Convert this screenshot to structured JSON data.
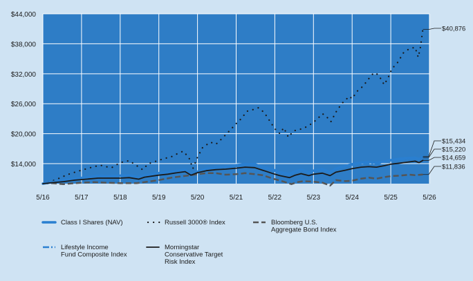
{
  "chart_data": {
    "type": "line",
    "title": "",
    "xlabel": "",
    "ylabel": "",
    "x_ticks": [
      "5/16",
      "5/17",
      "5/18",
      "5/19",
      "5/20",
      "5/21",
      "5/22",
      "5/23",
      "5/24",
      "5/25",
      "5/26"
    ],
    "y_ticks": [
      "$44,000",
      "$38,000",
      "$32,000",
      "$26,000",
      "$20,000",
      "$14,000"
    ],
    "ylim": [
      10000,
      44000
    ],
    "grid": true,
    "legend_position": "bottom",
    "end_labels": [
      {
        "text": "$40,876",
        "value": 40876
      },
      {
        "text": "$15,434",
        "value": 15434
      },
      {
        "text": "$15,220",
        "value": 15220
      },
      {
        "text": "$14,659",
        "value": 14659
      },
      {
        "text": "$11,836",
        "value": 11836
      }
    ],
    "colors": {
      "accent_blue": "#2a7fd0",
      "background": "#cfe3f3",
      "plot_bg": "#2e7dc6",
      "grid": "#ffffff",
      "dark": "#1a1a1a",
      "gray": "#555555"
    },
    "series": [
      {
        "name": "Class I Shares (NAV)",
        "style": "thick-blue",
        "points": [
          [
            2016.37,
            10000
          ],
          [
            2016.6,
            10300
          ],
          [
            2016.9,
            10700
          ],
          [
            2017.2,
            11000
          ],
          [
            2017.5,
            11300
          ],
          [
            2017.8,
            11600
          ],
          [
            2018.0,
            11500
          ],
          [
            2018.37,
            11600
          ],
          [
            2018.6,
            11700
          ],
          [
            2018.85,
            11300
          ],
          [
            2019.0,
            11700
          ],
          [
            2019.37,
            12100
          ],
          [
            2019.6,
            12300
          ],
          [
            2019.85,
            12600
          ],
          [
            2020.05,
            12800
          ],
          [
            2020.2,
            11900
          ],
          [
            2020.37,
            12400
          ],
          [
            2020.6,
            13000
          ],
          [
            2020.85,
            13300
          ],
          [
            2021.1,
            13400
          ],
          [
            2021.37,
            13700
          ],
          [
            2021.6,
            13900
          ],
          [
            2021.85,
            13900
          ],
          [
            2022.05,
            13400
          ],
          [
            2022.37,
            12700
          ],
          [
            2022.5,
            12300
          ],
          [
            2022.75,
            11900
          ],
          [
            2022.9,
            12500
          ],
          [
            2023.05,
            12800
          ],
          [
            2023.25,
            12300
          ],
          [
            2023.37,
            12600
          ],
          [
            2023.6,
            12900
          ],
          [
            2023.8,
            12300
          ],
          [
            2023.95,
            13000
          ],
          [
            2024.2,
            13600
          ],
          [
            2024.37,
            13900
          ],
          [
            2024.6,
            14200
          ],
          [
            2024.8,
            14300
          ],
          [
            2025.0,
            14200
          ],
          [
            2025.2,
            14400
          ],
          [
            2025.37,
            14700
          ],
          [
            2025.6,
            15000
          ],
          [
            2025.8,
            15100
          ],
          [
            2026.0,
            15200
          ],
          [
            2026.1,
            14900
          ],
          [
            2026.2,
            15434
          ]
        ]
      },
      {
        "name": "Russell 3000® Index",
        "style": "dotted-dark",
        "points": [
          [
            2016.37,
            10000
          ],
          [
            2016.6,
            10500
          ],
          [
            2016.8,
            11100
          ],
          [
            2017.0,
            11800
          ],
          [
            2017.2,
            12300
          ],
          [
            2017.37,
            12700
          ],
          [
            2017.6,
            13200
          ],
          [
            2017.85,
            13700
          ],
          [
            2018.0,
            13400
          ],
          [
            2018.15,
            13200
          ],
          [
            2018.37,
            14200
          ],
          [
            2018.6,
            14600
          ],
          [
            2018.8,
            13600
          ],
          [
            2018.95,
            12800
          ],
          [
            2019.1,
            14000
          ],
          [
            2019.3,
            14500
          ],
          [
            2019.5,
            15000
          ],
          [
            2019.7,
            15400
          ],
          [
            2019.85,
            16000
          ],
          [
            2020.0,
            16500
          ],
          [
            2020.15,
            15200
          ],
          [
            2020.25,
            13000
          ],
          [
            2020.37,
            15300
          ],
          [
            2020.5,
            17200
          ],
          [
            2020.7,
            18300
          ],
          [
            2020.85,
            17900
          ],
          [
            2021.0,
            19000
          ],
          [
            2021.15,
            20200
          ],
          [
            2021.37,
            22000
          ],
          [
            2021.5,
            23000
          ],
          [
            2021.65,
            24500
          ],
          [
            2021.8,
            24800
          ],
          [
            2021.95,
            25200
          ],
          [
            2022.1,
            24200
          ],
          [
            2022.2,
            23000
          ],
          [
            2022.37,
            21000
          ],
          [
            2022.5,
            20000
          ],
          [
            2022.6,
            21200
          ],
          [
            2022.72,
            19300
          ],
          [
            2022.85,
            20500
          ],
          [
            2022.95,
            20800
          ],
          [
            2023.1,
            21000
          ],
          [
            2023.3,
            21900
          ],
          [
            2023.45,
            22800
          ],
          [
            2023.6,
            24000
          ],
          [
            2023.7,
            23500
          ],
          [
            2023.82,
            22400
          ],
          [
            2023.95,
            24300
          ],
          [
            2024.1,
            26000
          ],
          [
            2024.3,
            27500
          ],
          [
            2024.37,
            27000
          ],
          [
            2024.5,
            28500
          ],
          [
            2024.65,
            29500
          ],
          [
            2024.8,
            31000
          ],
          [
            2024.93,
            32200
          ],
          [
            2025.05,
            31800
          ],
          [
            2025.2,
            29800
          ],
          [
            2025.3,
            31200
          ],
          [
            2025.4,
            33000
          ],
          [
            2025.55,
            34300
          ],
          [
            2025.7,
            36200
          ],
          [
            2025.85,
            37000
          ],
          [
            2026.0,
            37300
          ],
          [
            2026.08,
            35300
          ],
          [
            2026.13,
            37000
          ],
          [
            2026.2,
            40876
          ]
        ]
      },
      {
        "name": "Bloomberg U.S. Aggregate Bond Index",
        "style": "dashed-gray",
        "points": [
          [
            2016.37,
            10000
          ],
          [
            2016.6,
            10100
          ],
          [
            2016.9,
            9900
          ],
          [
            2017.2,
            10100
          ],
          [
            2017.37,
            10200
          ],
          [
            2017.7,
            10300
          ],
          [
            2018.0,
            10200
          ],
          [
            2018.37,
            10100
          ],
          [
            2018.8,
            10100
          ],
          [
            2019.0,
            10300
          ],
          [
            2019.37,
            10700
          ],
          [
            2019.7,
            11200
          ],
          [
            2020.0,
            11500
          ],
          [
            2020.2,
            11700
          ],
          [
            2020.37,
            11900
          ],
          [
            2020.6,
            12100
          ],
          [
            2020.85,
            12100
          ],
          [
            2021.1,
            11800
          ],
          [
            2021.37,
            11900
          ],
          [
            2021.6,
            12100
          ],
          [
            2021.85,
            11900
          ],
          [
            2022.05,
            11700
          ],
          [
            2022.37,
            10900
          ],
          [
            2022.6,
            10400
          ],
          [
            2022.8,
            9900
          ],
          [
            2022.95,
            10300
          ],
          [
            2023.1,
            10500
          ],
          [
            2023.37,
            10400
          ],
          [
            2023.6,
            10200
          ],
          [
            2023.8,
            9600
          ],
          [
            2023.95,
            10700
          ],
          [
            2024.2,
            10500
          ],
          [
            2024.37,
            10600
          ],
          [
            2024.6,
            11000
          ],
          [
            2024.8,
            11200
          ],
          [
            2025.0,
            11000
          ],
          [
            2025.2,
            11300
          ],
          [
            2025.37,
            11500
          ],
          [
            2025.6,
            11600
          ],
          [
            2025.85,
            11800
          ],
          [
            2026.0,
            11700
          ],
          [
            2026.2,
            11836
          ]
        ]
      },
      {
        "name": "Lifestyle Income Fund Composite Index",
        "style": "dashdot-blue",
        "points": [
          [
            2016.37,
            10000
          ],
          [
            2016.6,
            10200
          ],
          [
            2016.9,
            10500
          ],
          [
            2017.2,
            10900
          ],
          [
            2017.5,
            11200
          ],
          [
            2017.8,
            11400
          ],
          [
            2018.0,
            11400
          ],
          [
            2018.37,
            11500
          ],
          [
            2018.6,
            11600
          ],
          [
            2018.85,
            11200
          ],
          [
            2019.0,
            11600
          ],
          [
            2019.37,
            11900
          ],
          [
            2019.6,
            12100
          ],
          [
            2019.85,
            12400
          ],
          [
            2020.05,
            12600
          ],
          [
            2020.2,
            11800
          ],
          [
            2020.37,
            12300
          ],
          [
            2020.6,
            12800
          ],
          [
            2020.85,
            13100
          ],
          [
            2021.1,
            13200
          ],
          [
            2021.37,
            13500
          ],
          [
            2021.6,
            13700
          ],
          [
            2021.85,
            13700
          ],
          [
            2022.05,
            13200
          ],
          [
            2022.37,
            12500
          ],
          [
            2022.5,
            12100
          ],
          [
            2022.75,
            11700
          ],
          [
            2022.9,
            12300
          ],
          [
            2023.05,
            12600
          ],
          [
            2023.25,
            12100
          ],
          [
            2023.37,
            12400
          ],
          [
            2023.6,
            12700
          ],
          [
            2023.8,
            12200
          ],
          [
            2023.95,
            12900
          ],
          [
            2024.2,
            13400
          ],
          [
            2024.37,
            13700
          ],
          [
            2024.6,
            14000
          ],
          [
            2024.8,
            14100
          ],
          [
            2025.0,
            14000
          ],
          [
            2025.2,
            14300
          ],
          [
            2025.37,
            14600
          ],
          [
            2025.6,
            14800
          ],
          [
            2025.8,
            14900
          ],
          [
            2026.0,
            15000
          ],
          [
            2026.1,
            14800
          ],
          [
            2026.2,
            15220
          ]
        ]
      },
      {
        "name": "Morningstar Conservative Target Risk Index",
        "style": "solid-black",
        "points": [
          [
            2016.37,
            10000
          ],
          [
            2016.6,
            10200
          ],
          [
            2016.9,
            10400
          ],
          [
            2017.2,
            10700
          ],
          [
            2017.5,
            10900
          ],
          [
            2017.8,
            11100
          ],
          [
            2018.0,
            11100
          ],
          [
            2018.37,
            11100
          ],
          [
            2018.6,
            11200
          ],
          [
            2018.85,
            10900
          ],
          [
            2019.0,
            11300
          ],
          [
            2019.37,
            11700
          ],
          [
            2019.6,
            11900
          ],
          [
            2019.85,
            12200
          ],
          [
            2020.05,
            12400
          ],
          [
            2020.2,
            11700
          ],
          [
            2020.37,
            12200
          ],
          [
            2020.6,
            12600
          ],
          [
            2020.85,
            12800
          ],
          [
            2021.1,
            12900
          ],
          [
            2021.37,
            13100
          ],
          [
            2021.6,
            13300
          ],
          [
            2021.85,
            13200
          ],
          [
            2022.05,
            12700
          ],
          [
            2022.37,
            11900
          ],
          [
            2022.5,
            11600
          ],
          [
            2022.75,
            11200
          ],
          [
            2022.9,
            11700
          ],
          [
            2023.05,
            12000
          ],
          [
            2023.25,
            11600
          ],
          [
            2023.37,
            11900
          ],
          [
            2023.6,
            12100
          ],
          [
            2023.8,
            11600
          ],
          [
            2023.95,
            12300
          ],
          [
            2024.2,
            12700
          ],
          [
            2024.37,
            13000
          ],
          [
            2024.6,
            13300
          ],
          [
            2024.8,
            13400
          ],
          [
            2025.0,
            13300
          ],
          [
            2025.2,
            13600
          ],
          [
            2025.37,
            13900
          ],
          [
            2025.6,
            14100
          ],
          [
            2025.8,
            14300
          ],
          [
            2026.0,
            14500
          ],
          [
            2026.1,
            14200
          ],
          [
            2026.2,
            14659
          ]
        ]
      }
    ]
  }
}
